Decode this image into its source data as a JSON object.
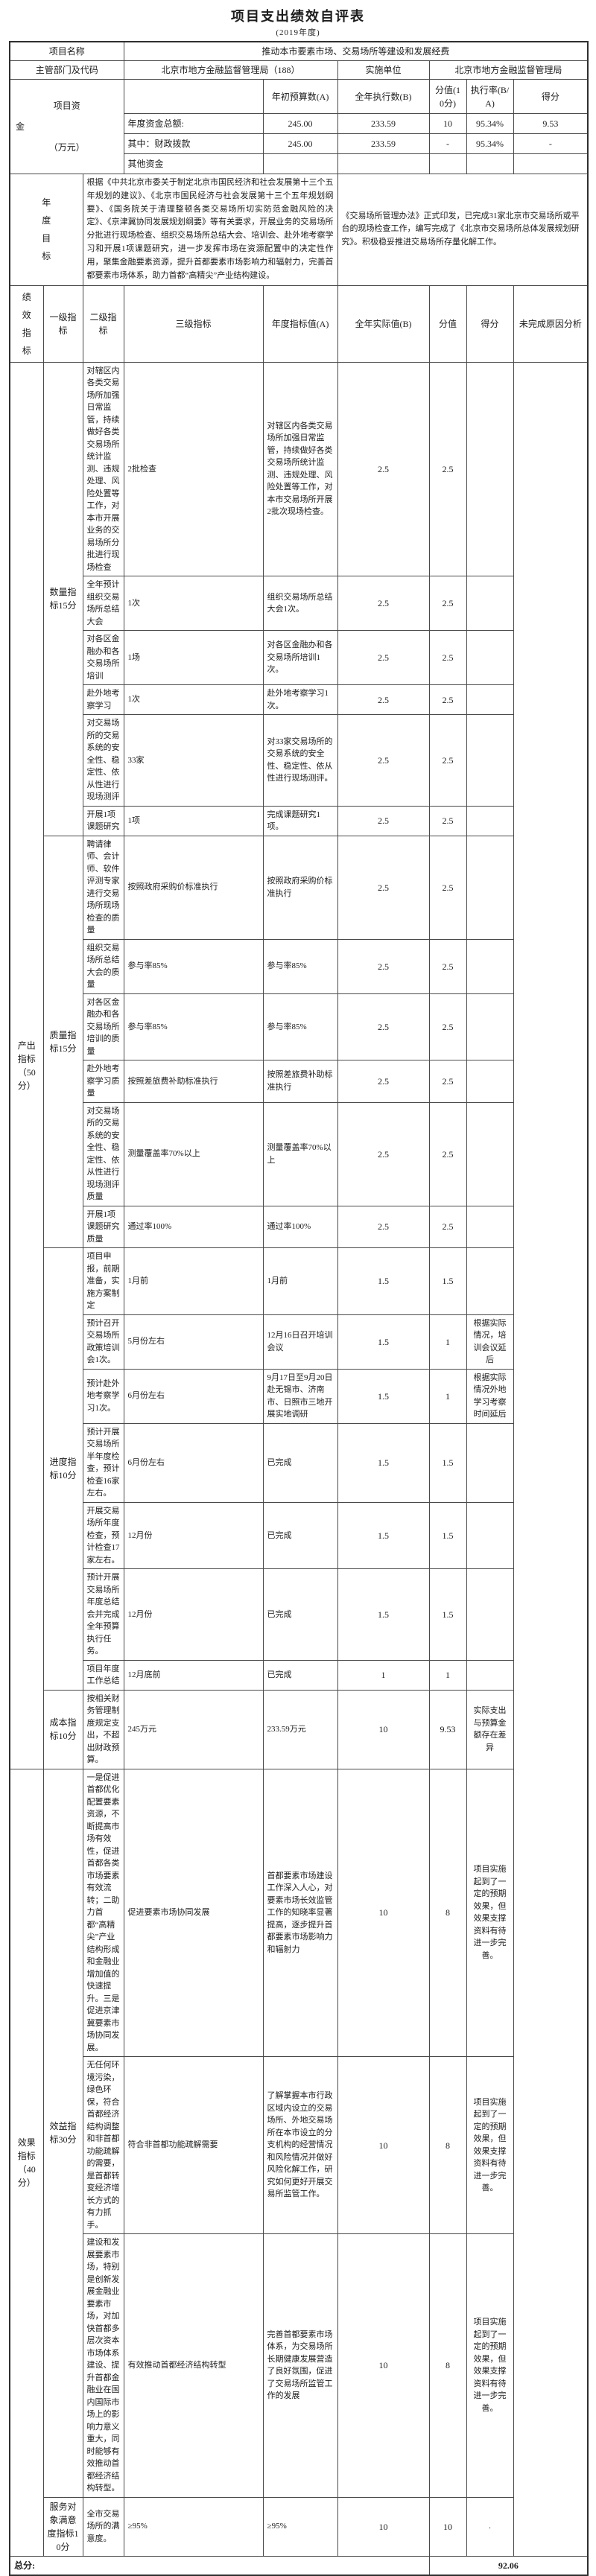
{
  "title": "项目支出绩效自评表",
  "subtitle": "(2019年度)",
  "info": {
    "project_name_label": "项目名称",
    "project_name": "推动本市要素市场、交易场所等建设和发展经费",
    "dept_label": "主管部门及代码",
    "dept_value": "北京市地方金融监督管理局（188）",
    "impl_label": "实施单位",
    "impl_value": "北京市地方金融监督管理局"
  },
  "funds": {
    "label_parts": [
      "项目资",
      "金",
      "（万元）"
    ],
    "col_headers": [
      "年初预算数(A)",
      "全年执行数(B)",
      "分值(10分)",
      "执行率(B/A)",
      "得分"
    ],
    "rows": [
      {
        "name": "年度资金总额:",
        "a": "245.00",
        "b": "233.59",
        "base": "10",
        "rate": "95.34%",
        "score": "9.53"
      },
      {
        "name": "其中：财政拨款",
        "a": "245.00",
        "b": "233.59",
        "base": "-",
        "rate": "95.34%",
        "score": "-"
      },
      {
        "name": "其他资金",
        "a": "",
        "b": "",
        "base": "",
        "rate": "",
        "score": ""
      }
    ]
  },
  "annual_goal": {
    "label": "年度目标",
    "plan": "根据《中共北京市委关于制定北京市国民经济和社会发展第十三个五年规划的建议》、《北京市国民经济与社会发展第十三个五年规划纲要》、《国务院关于清理整顿各类交易场所切实防范金融风险的决定》、《京津冀协同发展规划纲要》等有关要求，开展业务的交易场所分批进行现场检查、组织交易场所总结大会、培训会、赴外地考察学习和开展1项课题研究，进一步发挥市场在资源配置中的决定性作用，聚集金融要素资源，提升首都要素市场影响力和辐射力，完善首都要素市场体系，助力首都“高精尖”产业结构建设。",
    "actual": "《交易场所管理办法》正式印发，已完成31家北京市交易场所或平台的现场检查工作，编写完成了《北京市交易场所总体发展规划研究》。积极稳妥推进交易场所存量化解工作。"
  },
  "indicators": {
    "side_label": "绩效指标",
    "headers": [
      "一级指标",
      "二级指标",
      "三级指标",
      "年度指标值(A)",
      "全年实际值(B)",
      "分值",
      "得分",
      "未完成原因分析"
    ],
    "level1": [
      {
        "label": "产出指标（50分）",
        "start": 0,
        "rowspan": 20
      },
      {
        "label": "效果指标（40分）",
        "start": 20,
        "rowspan": 4
      }
    ],
    "level2": [
      {
        "label": "数量指标15分",
        "start": 0,
        "rowspan": 6
      },
      {
        "label": "质量指标15分",
        "start": 6,
        "rowspan": 6
      },
      {
        "label": "进度指标10分",
        "start": 12,
        "rowspan": 7
      },
      {
        "label": "成本指标10分",
        "start": 19,
        "rowspan": 1
      },
      {
        "label": "效益指标30分",
        "start": 20,
        "rowspan": 3
      },
      {
        "label": "服务对象满意度指标10分",
        "start": 23,
        "rowspan": 1
      }
    ],
    "rows": [
      {
        "l3": "对辖区内各类交易场所加强日常监管，持续做好各类交易场所统计监测、违规处理、风险处置等工作，对本市开展业务的交易场所分批进行现场检查",
        "target": "2批检查",
        "actual": "对辖区内各类交易场所加强日常监管，持续做好各类交易场所统计监测、违规处理、风险处置等工作，对本市交易场所开展2批次现场检查。",
        "base": "2.5",
        "score": "2.5",
        "reason": ""
      },
      {
        "l3": "全年预计组织交易场所总结大会",
        "target": "1次",
        "actual": "组织交易场所总结大会1次。",
        "base": "2.5",
        "score": "2.5",
        "reason": ""
      },
      {
        "l3": "对各区金融办和各交易场所培训",
        "target": "1场",
        "actual": "对各区金融办和各交易场所培训1次。",
        "base": "2.5",
        "score": "2.5",
        "reason": ""
      },
      {
        "l3": "赴外地考察学习",
        "target": "1次",
        "actual": "赴外地考察学习1次。",
        "base": "2.5",
        "score": "2.5",
        "reason": ""
      },
      {
        "l3": "对交易场所的交易系统的安全性、稳定性、依从性进行现场测评",
        "target": "33家",
        "actual": "对33家交易场所的交易系统的安全性、稳定性、依从性进行现场测评。",
        "base": "2.5",
        "score": "2.5",
        "reason": ""
      },
      {
        "l3": "开展1项课题研究",
        "target": "1项",
        "actual": "完成课题研究1项。",
        "base": "2.5",
        "score": "2.5",
        "reason": ""
      },
      {
        "l3": "聘请律师、会计师、软件评测专家进行交易场所现场检查的质量",
        "target": "按照政府采购价标准执行",
        "actual": "按照政府采购价标准执行",
        "base": "2.5",
        "score": "2.5",
        "reason": ""
      },
      {
        "l3": "组织交易场所总结大会的质量",
        "target": "参与率85%",
        "actual": "参与率85%",
        "base": "2.5",
        "score": "2.5",
        "reason": ""
      },
      {
        "l3": "对各区金融办和各交易场所培训的质量",
        "target": "参与率85%",
        "actual": "参与率85%",
        "base": "2.5",
        "score": "2.5",
        "reason": ""
      },
      {
        "l3": "赴外地考察学习质量",
        "target": "按照差旅费补助标准执行",
        "actual": "按照差旅费补助标准执行",
        "base": "2.5",
        "score": "2.5",
        "reason": ""
      },
      {
        "l3": "对交易场所的交易系统的安全性、稳定性、依从性进行现场测评质量",
        "target": "测量覆盖率70%以上",
        "actual": "测量覆盖率70%以上",
        "base": "2.5",
        "score": "2.5",
        "reason": ""
      },
      {
        "l3": "开展1项课题研究质量",
        "target": "通过率100%",
        "actual": "通过率100%",
        "base": "2.5",
        "score": "2.5",
        "reason": ""
      },
      {
        "l3": "项目申报，前期准备，实施方案制定",
        "target": "1月前",
        "actual": "1月前",
        "base": "1.5",
        "score": "1.5",
        "reason": ""
      },
      {
        "l3": "预计召开交易场所政策培训会1次。",
        "target": "5月份左右",
        "actual": "12月16日召开培训会议",
        "base": "1.5",
        "score": "1",
        "reason": "根据实际情况，培训会议延后"
      },
      {
        "l3": "预计赴外地考察学习1次。",
        "target": "6月份左右",
        "actual": "9月17日至9月20日赴无锡市、济南市、日照市三地开展实地调研",
        "base": "1.5",
        "score": "1",
        "reason": "根据实际情况外地学习考察时间延后"
      },
      {
        "l3": "预计开展交易场所半年度检查，预计检查16家左右。",
        "target": "6月份左右",
        "actual": "已完成",
        "base": "1.5",
        "score": "1.5",
        "reason": ""
      },
      {
        "l3": "开展交易场所年度检查，预计检查17家左右。",
        "target": "12月份",
        "actual": "已完成",
        "base": "1.5",
        "score": "1.5",
        "reason": ""
      },
      {
        "l3": "预计开展交易场所年度总结会并完成全年预算执行任务。",
        "target": "12月份",
        "actual": "已完成",
        "base": "1.5",
        "score": "1.5",
        "reason": ""
      },
      {
        "l3": "项目年度工作总结",
        "target": "12月底前",
        "actual": "已完成",
        "base": "1",
        "score": "1",
        "reason": ""
      },
      {
        "l3": "按相关财务管理制度规定支出，不超出财政预算。",
        "target": "245万元",
        "actual": "233.59万元",
        "base": "10",
        "score": "9.53",
        "reason": "实际支出与预算金额存在差异"
      },
      {
        "l3": "一是促进首都优化配置要素资源，不断提高市场有效性，促进首都各类市场要素有效流转；二助力首都“高精尖”产业结构形成和金融业增加值的快速提升。三是促进京津冀要素市场协同发展。",
        "target": "促进要素市场协同发展",
        "actual": "首都要素市场建设工作深入人心，对要素市场长效监管工作的知晓率显著提高，逐步提升首都要素市场影响力和辐射力",
        "base": "10",
        "score": "8",
        "reason": "项目实施起到了一定的预期效果，但效果支撑资料有待进一步完善。"
      },
      {
        "l3": "无任何环境污染，绿色环保，符合首都经济结构调整和非首都功能疏解的需要，是首都转变经济增长方式的有力抓手。",
        "target": "符合非首都功能疏解需要",
        "actual": "了解掌握本市行政区域内设立的交易场所、外地交易场所在本市设立的分支机构的经营情况和风险情况并做好风险化解工作，研究如何更好开展交易所监管工作。",
        "base": "10",
        "score": "8",
        "reason": "项目实施起到了一定的预期效果，但效果支撑资料有待进一步完善。"
      },
      {
        "l3": "建设和发展要素市场，特别是创新发展金融业要素市场，对加快首都多层次资本市场体系建设、提升首都金融业在国内国际市场上的影响力意义重大，同时能够有效推动首都经济结构转型。",
        "target": "有效推动首都经济结构转型",
        "actual": "完善首都要素市场体系，为交易场所长期健康发展营造了良好氛围，促进了交易场所监管工作的发展",
        "base": "10",
        "score": "8",
        "reason": "项目实施起到了一定的预期效果，但效果支撑资料有待进一步完善。"
      },
      {
        "l3": "全市交易场所的满意度。",
        "target": "≥95%",
        "actual": "≥95%",
        "base": "10",
        "score": "10",
        "reason": "."
      }
    ]
  },
  "total": {
    "label": "总分:",
    "value": "92.06"
  }
}
